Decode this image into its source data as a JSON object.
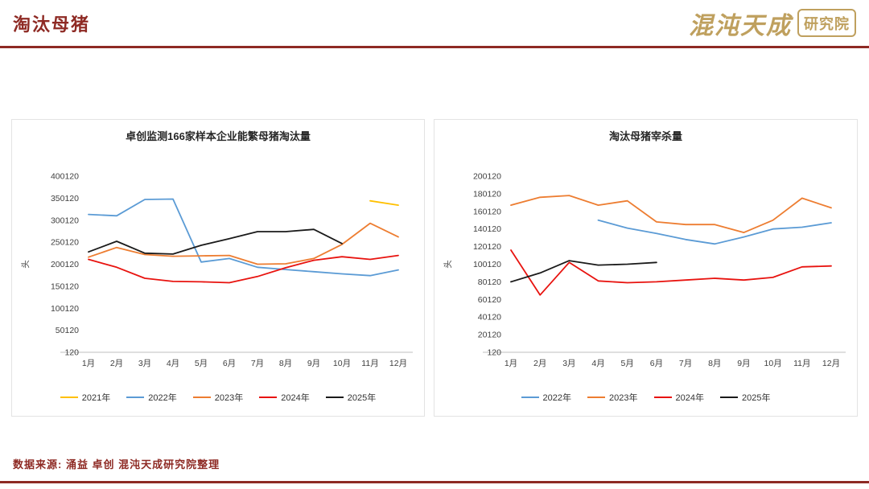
{
  "header": {
    "title": "淘汰母猪",
    "logo_main": "混沌天成",
    "logo_badge": "研究院"
  },
  "footer": {
    "source": "数据来源: 涌益 卓创 混沌天成研究院整理"
  },
  "colors": {
    "accent": "#8E2A24",
    "gold": "#BFA05E",
    "year2021": "#FFC000",
    "year2022": "#5B9BD5",
    "year2023": "#ED7D31",
    "year2024": "#E8130F",
    "year2025": "#1A1A1A"
  },
  "chart_data": [
    {
      "type": "line",
      "title": "卓创监测166家样本企业能繁母猪淘汰量",
      "ylabel": "头",
      "ylim": [
        120,
        400120
      ],
      "y_ticks": [
        400120,
        350120,
        300120,
        250120,
        200120,
        150120,
        100120,
        50120,
        120
      ],
      "categories": [
        "1月",
        "2月",
        "3月",
        "4月",
        "5月",
        "6月",
        "7月",
        "8月",
        "9月",
        "10月",
        "11月",
        "12月"
      ],
      "grid": false,
      "legend_position": "bottom",
      "series": [
        {
          "name": "2021年",
          "color": "#FFC000",
          "values": [
            null,
            null,
            null,
            null,
            null,
            null,
            null,
            null,
            null,
            null,
            344120,
            334120
          ]
        },
        {
          "name": "2022年",
          "color": "#5B9BD5",
          "values": [
            313120,
            310120,
            347120,
            348120,
            205120,
            213120,
            193120,
            188120,
            183120,
            178120,
            174120,
            187120
          ]
        },
        {
          "name": "2023年",
          "color": "#ED7D31",
          "values": [
            216120,
            238120,
            222120,
            218120,
            219120,
            220120,
            200120,
            201120,
            213120,
            245120,
            293120,
            262120
          ]
        },
        {
          "name": "2024年",
          "color": "#E8130F",
          "values": [
            211120,
            193120,
            168120,
            161120,
            160120,
            158120,
            172120,
            192120,
            209120,
            217120,
            211120,
            220120
          ]
        },
        {
          "name": "2025年",
          "color": "#1A1A1A",
          "values": [
            228120,
            252120,
            225120,
            223120,
            243120,
            258120,
            274120,
            274120,
            279120,
            247120,
            null,
            null
          ]
        }
      ]
    },
    {
      "type": "line",
      "title": "淘汰母猪宰杀量",
      "ylabel": "头",
      "ylim": [
        120,
        200120
      ],
      "y_ticks": [
        200120,
        180120,
        160120,
        140120,
        120120,
        100120,
        80120,
        60120,
        40120,
        20120,
        120
      ],
      "categories": [
        "1月",
        "2月",
        "3月",
        "4月",
        "5月",
        "6月",
        "7月",
        "8月",
        "9月",
        "10月",
        "11月",
        "12月"
      ],
      "grid": false,
      "legend_position": "bottom",
      "series": [
        {
          "name": "2022年",
          "color": "#5B9BD5",
          "values": [
            null,
            null,
            null,
            150120,
            141120,
            135120,
            128120,
            123120,
            131120,
            140120,
            142120,
            147120
          ]
        },
        {
          "name": "2023年",
          "color": "#ED7D31",
          "values": [
            167120,
            176120,
            178120,
            167120,
            172120,
            148120,
            145120,
            145120,
            136120,
            150120,
            175120,
            164120
          ]
        },
        {
          "name": "2024年",
          "color": "#E8130F",
          "values": [
            116120,
            65120,
            102120,
            81120,
            79120,
            80120,
            82120,
            84120,
            82120,
            85120,
            97120,
            98120
          ]
        },
        {
          "name": "2025年",
          "color": "#1A1A1A",
          "values": [
            80120,
            90120,
            104120,
            99120,
            100120,
            102120,
            null,
            null,
            null,
            null,
            null,
            null
          ]
        }
      ]
    }
  ]
}
